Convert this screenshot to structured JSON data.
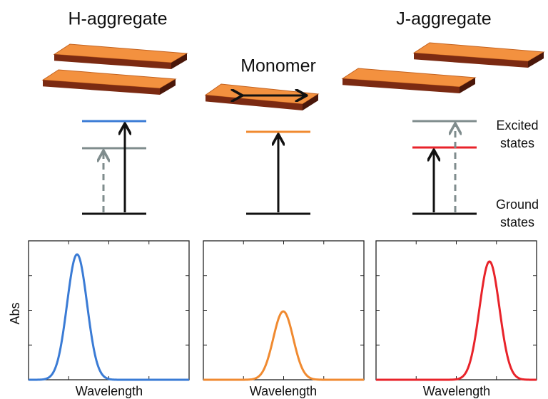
{
  "titles": {
    "h": "H-aggregate",
    "monomer": "Monomer",
    "j": "J-aggregate"
  },
  "excited_label": [
    "Excited",
    "states"
  ],
  "ground_label": [
    "Ground",
    "states"
  ],
  "y_axis_label": "Abs",
  "x_axis_labels": [
    "Wavelength",
    "Wavelength",
    "Wavelength"
  ]
}
